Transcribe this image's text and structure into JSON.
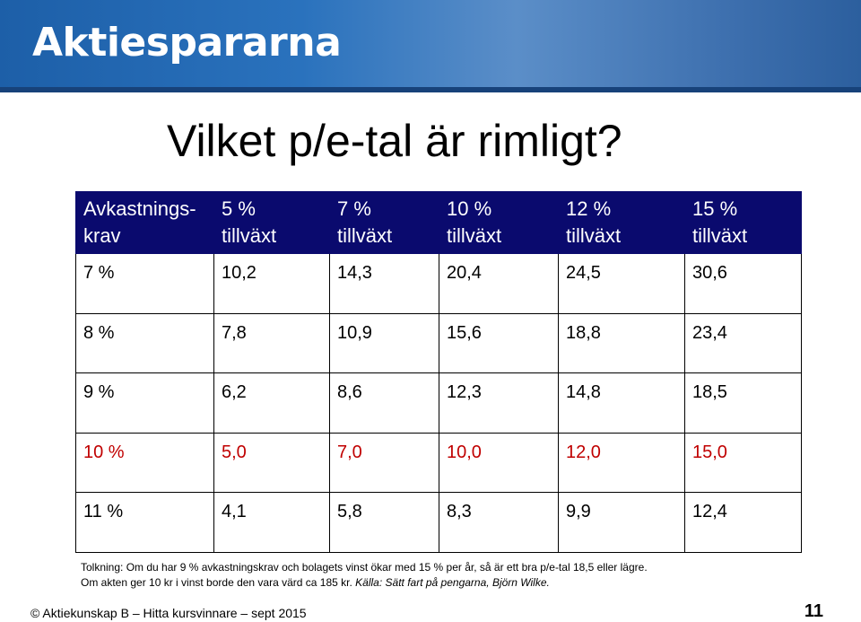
{
  "header": {
    "logo": "Aktiespararna"
  },
  "title": "Vilket p/e-tal är rimligt?",
  "table": {
    "header": [
      [
        "Avkastnings-",
        "krav"
      ],
      [
        "5 %",
        "tillväxt"
      ],
      [
        "7 %",
        "tillväxt"
      ],
      [
        "10 %",
        "tillväxt"
      ],
      [
        "12 %",
        "tillväxt"
      ],
      [
        "15 %",
        "tillväxt"
      ]
    ],
    "rows": [
      [
        "7 %",
        "10,2",
        "14,3",
        "20,4",
        "24,5",
        "30,6"
      ],
      [
        "8 %",
        "7,8",
        "10,9",
        "15,6",
        "18,8",
        "23,4"
      ],
      [
        "9 %",
        "6,2",
        "8,6",
        "12,3",
        "14,8",
        "18,5"
      ],
      [
        "10 %",
        "5,0",
        "7,0",
        "10,0",
        "12,0",
        "15,0"
      ],
      [
        "11 %",
        "4,1",
        "5,8",
        "8,3",
        "9,9",
        "12,4"
      ]
    ]
  },
  "note": {
    "line1": "Tolkning: Om du har 9 % avkastningskrav och bolagets vinst ökar med 15 % per år, så är ett bra p/e-tal 18,5 eller lägre.",
    "line2": "Om akten ger 10 kr i vinst borde den vara värd ca 185 kr.",
    "source": "Källa: Sätt fart på pengarna, Björn Wilke."
  },
  "footer": {
    "text": "© Aktiekunskap B – Hitta kursvinnare – sept 2015",
    "page": "11"
  }
}
